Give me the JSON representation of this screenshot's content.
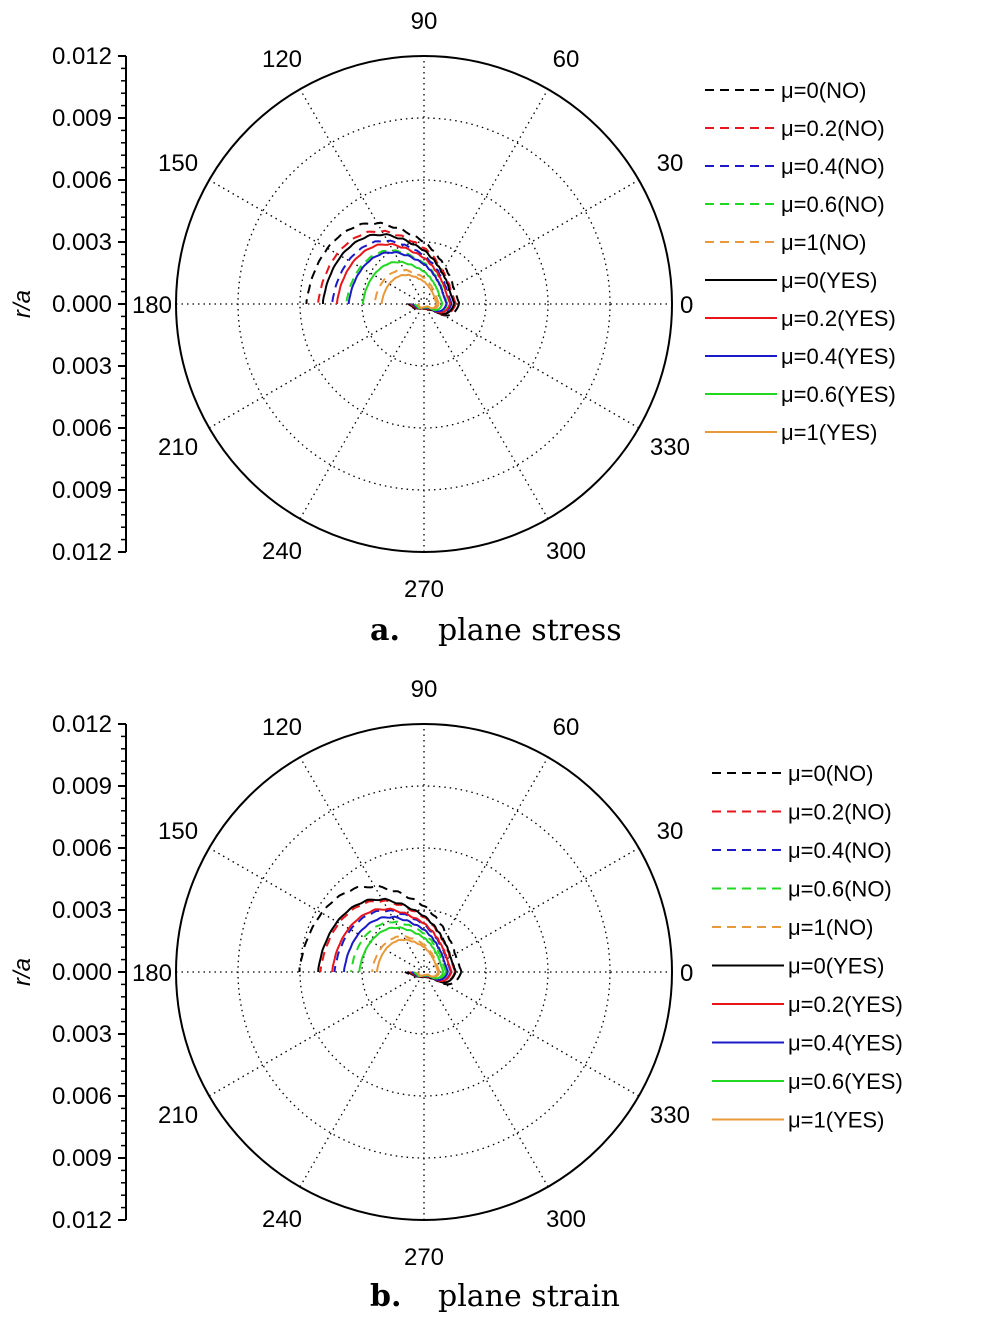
{
  "chart_data": [
    {
      "type": "polar-line",
      "caption_letter": "a.",
      "caption": "plane stress",
      "radial_axis_label": "r/a",
      "radial_ticks": [
        "0.012",
        "0.009",
        "0.006",
        "0.003",
        "0.000",
        "0.003",
        "0.006",
        "0.009",
        "0.012"
      ],
      "radial_range": [
        0,
        0.012
      ],
      "angle_labels": [
        "0",
        "30",
        "60",
        "90",
        "120",
        "150",
        "180",
        "210",
        "240",
        "270",
        "300",
        "330"
      ],
      "grid": true,
      "legend_position": "right",
      "series": [
        {
          "name": "μ=0(NO)",
          "color": "#000000",
          "style": "dashed",
          "scale": 1.0
        },
        {
          "name": "μ=0.2(NO)",
          "color": "#e8161b",
          "style": "dashed",
          "scale": 0.9
        },
        {
          "name": "μ=0.4(NO)",
          "color": "#1a1ac8",
          "style": "dashed",
          "scale": 0.78
        },
        {
          "name": "μ=0.6(NO)",
          "color": "#22d822",
          "style": "dashed",
          "scale": 0.66
        },
        {
          "name": "μ=1(NO)",
          "color": "#e89a3a",
          "style": "dashed",
          "scale": 0.42
        },
        {
          "name": "μ=0(YES)",
          "color": "#000000",
          "style": "solid",
          "scale": 0.86
        },
        {
          "name": "μ=0.2(YES)",
          "color": "#e8161b",
          "style": "solid",
          "scale": 0.74
        },
        {
          "name": "μ=0.4(YES)",
          "color": "#1a1ac8",
          "style": "solid",
          "scale": 0.64
        },
        {
          "name": "μ=0.6(YES)",
          "color": "#22d822",
          "style": "solid",
          "scale": 0.52
        },
        {
          "name": "μ=1(YES)",
          "color": "#e89a3a",
          "style": "solid",
          "scale": 0.36
        }
      ]
    },
    {
      "type": "polar-line",
      "caption_letter": "b.",
      "caption": "plane strain",
      "radial_axis_label": "r/a",
      "radial_ticks": [
        "0.012",
        "0.009",
        "0.006",
        "0.003",
        "0.000",
        "0.003",
        "0.006",
        "0.009",
        "0.012"
      ],
      "radial_range": [
        0,
        0.012
      ],
      "angle_labels": [
        "0",
        "30",
        "60",
        "90",
        "120",
        "150",
        "180",
        "210",
        "240",
        "270",
        "300",
        "330"
      ],
      "grid": true,
      "legend_position": "right",
      "series": [
        {
          "name": "μ=0(NO)",
          "color": "#000000",
          "style": "dashed",
          "scale": 1.06
        },
        {
          "name": "μ=0.2(NO)",
          "color": "#e8161b",
          "style": "dashed",
          "scale": 0.88
        },
        {
          "name": "μ=0.4(NO)",
          "color": "#1a1ac8",
          "style": "dashed",
          "scale": 0.76
        },
        {
          "name": "μ=0.6(NO)",
          "color": "#22d822",
          "style": "dashed",
          "scale": 0.62
        },
        {
          "name": "μ=1(NO)",
          "color": "#e89a3a",
          "style": "dashed",
          "scale": 0.44
        },
        {
          "name": "μ=0(YES)",
          "color": "#000000",
          "style": "solid",
          "scale": 0.9
        },
        {
          "name": "μ=0.2(YES)",
          "color": "#e8161b",
          "style": "solid",
          "scale": 0.78
        },
        {
          "name": "μ=0.4(YES)",
          "color": "#1a1ac8",
          "style": "solid",
          "scale": 0.68
        },
        {
          "name": "μ=0.6(YES)",
          "color": "#22d822",
          "style": "solid",
          "scale": 0.55
        },
        {
          "name": "μ=1(YES)",
          "color": "#e89a3a",
          "style": "solid",
          "scale": 0.4
        }
      ]
    }
  ]
}
